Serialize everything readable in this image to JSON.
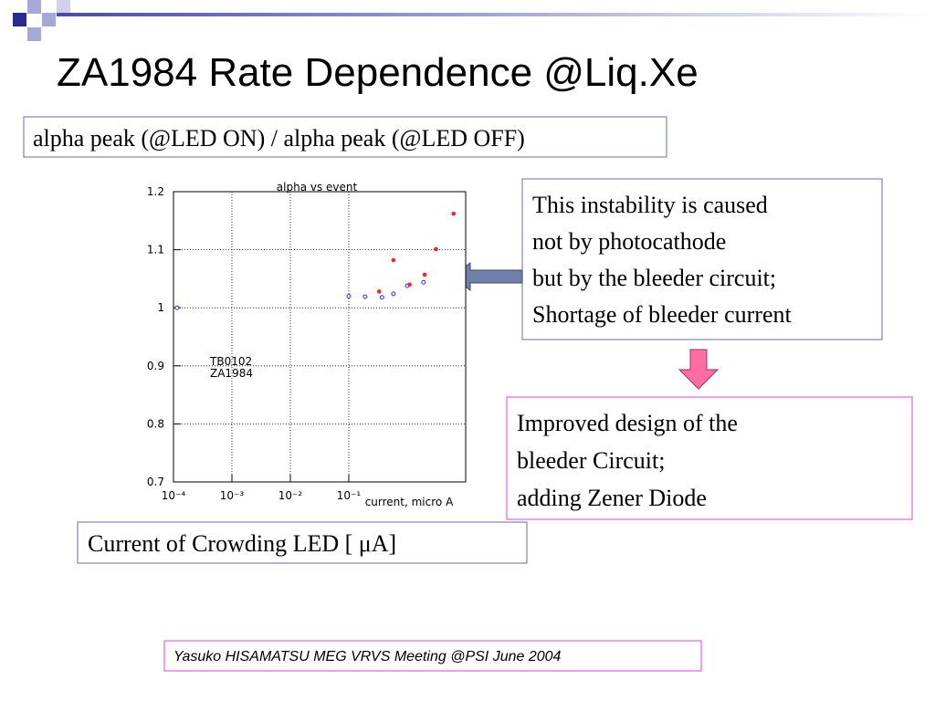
{
  "title": "ZA1984 Rate Dependence @Liq.Xe",
  "subtitle_box": "alpha peak (@LED ON) / alpha peak (@LED OFF)",
  "x_caption_box": "Current of Crowding LED [ μA]",
  "note_box": [
    "This instability is caused",
    "not by photocathode",
    "but by the bleeder circuit;",
    "Shortage of bleeder current"
  ],
  "result_box": [
    "Improved design of the",
    "bleeder Circuit;",
    "adding Zener Diode"
  ],
  "footer": "Yasuko HISAMATSU MEG VRVS Meeting @PSI  June 2004",
  "chart_data": {
    "type": "scatter",
    "title": "alpha vs event",
    "xlabel": "current, micro A",
    "xlog": true,
    "grid": true,
    "xlim": [
      0.0001,
      10
    ],
    "xticks": [
      {
        "value": 0.0001,
        "label": "10⁻⁴"
      },
      {
        "value": 0.001,
        "label": "10⁻³"
      },
      {
        "value": 0.01,
        "label": "10⁻²"
      },
      {
        "value": 0.1,
        "label": "10⁻¹"
      }
    ],
    "ylim": [
      0.7,
      1.2
    ],
    "yticks": [
      0.7,
      0.8,
      0.9,
      1,
      1.1,
      1.2
    ],
    "series": [
      {
        "name": "TB0102",
        "color": "#2a2aff",
        "x": [
          0.000115,
          0.1,
          0.19,
          0.37,
          0.58,
          1.0,
          1.9
        ],
        "values": [
          1.0,
          1.02,
          1.019,
          1.018,
          1.024,
          1.038,
          1.044
        ]
      },
      {
        "name": "ZA1984",
        "color": "#ff2020",
        "x": [
          0.33,
          0.58,
          1.1,
          1.98,
          3.1,
          6.2
        ],
        "values": [
          1.028,
          1.082,
          1.04,
          1.057,
          1.101,
          1.162
        ]
      }
    ]
  }
}
